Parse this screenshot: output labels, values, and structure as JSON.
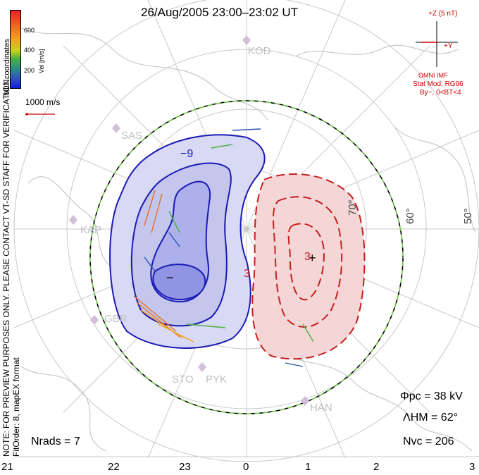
{
  "title": "26/Aug/2005 23:00–23:02 UT",
  "colorbar": {
    "label": "Vel [m/s]",
    "ticks": [
      "600",
      "400",
      "200"
    ],
    "colors": [
      "#e8202a",
      "#f5a020",
      "#4ab040",
      "#1020e0"
    ]
  },
  "coords_label": "MLT coordinates",
  "scale_vector": "1000 m/s",
  "left_note": {
    "line1": "NOTE: FOR PREVIEW PURPOSES ONLY. PLEASE CONTACT VT-SD STAFF FOR VERIFICATION.",
    "line2": "FitOrder: 8, mapEX format"
  },
  "imf": {
    "z": "+Z (5 nT)",
    "y": "+Y",
    "source": "OMNI IMF",
    "model": "Stat Mod: RG96",
    "condition": "By−, 0<BT<4"
  },
  "radars": [
    "KOD",
    "SAS",
    "KAP",
    "GBR",
    "STO",
    "PYK",
    "HAN"
  ],
  "lat_labels": [
    "50°",
    "60°",
    "70°"
  ],
  "contour_labels": {
    "neg": "−",
    "pos": "+",
    "neg_val": "−9",
    "pos_val": "3",
    "pos_val2": "3"
  },
  "stats": {
    "phi_pc": "Φpc = 38 kV",
    "lambda_hm": "ΛHM = 62°",
    "n_vc": "Nvc = 206",
    "n_rads": "Nrads = 7"
  },
  "mlt_ticks": [
    "21",
    "22",
    "23",
    "0",
    "1",
    "2",
    "3"
  ],
  "colors": {
    "neg_fill": "#cfd0f0",
    "neg_line": "#1a1ab4",
    "pos_fill": "#f4d6d6",
    "pos_line": "#c81e1e",
    "boundary": "#6ac040"
  }
}
